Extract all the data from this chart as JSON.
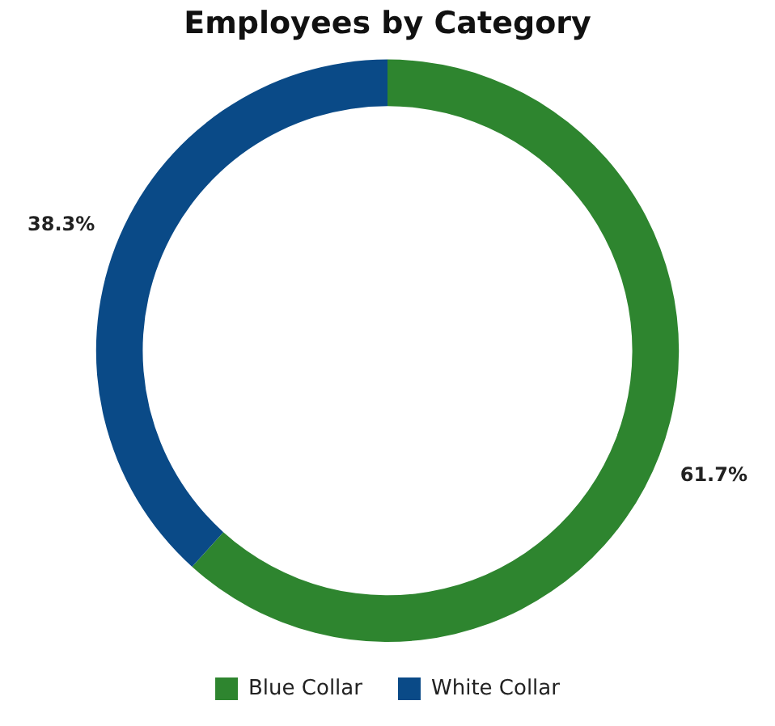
{
  "chart_data": {
    "type": "donut",
    "title": "Employees by Category",
    "categories": [
      "Blue Collar",
      "White Collar"
    ],
    "values": [
      61.7,
      38.3
    ],
    "colors": [
      "#2e852f",
      "#0a4a87"
    ],
    "value_labels": [
      "61.7%",
      "38.3%"
    ],
    "legend": "bottom"
  }
}
